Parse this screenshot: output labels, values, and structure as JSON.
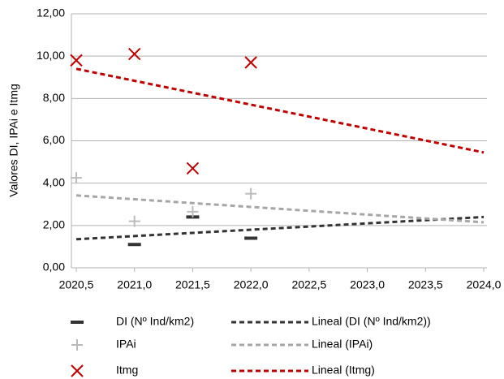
{
  "chart_data": {
    "type": "scatter",
    "y_label": "Valores DI, IPAi e Itmg",
    "xlim": [
      2020.5,
      2024.0
    ],
    "xticks": [
      {
        "value": 2020.5,
        "label": "2020,5"
      },
      {
        "value": 2021.0,
        "label": "2021,0"
      },
      {
        "value": 2021.5,
        "label": "2021,5"
      },
      {
        "value": 2022.0,
        "label": "2022,0"
      },
      {
        "value": 2022.5,
        "label": "2022,5"
      },
      {
        "value": 2023.0,
        "label": "2023,0"
      },
      {
        "value": 2023.5,
        "label": "2023,5"
      },
      {
        "value": 2024.0,
        "label": "2024,0"
      }
    ],
    "ylim": [
      0,
      12
    ],
    "yticks": [
      {
        "value": 0,
        "label": "0,00"
      },
      {
        "value": 2,
        "label": "2,00"
      },
      {
        "value": 4,
        "label": "4,00"
      },
      {
        "value": 6,
        "label": "6,00"
      },
      {
        "value": 8,
        "label": "8,00"
      },
      {
        "value": 10,
        "label": "10,00"
      },
      {
        "value": 12,
        "label": "12,00"
      }
    ],
    "grid": true,
    "legend": "bottom",
    "series": [
      {
        "name": "DI (Nº Ind/km2)",
        "color": "#333333",
        "marker": "dash",
        "x": [
          2021.0,
          2021.5,
          2022.0
        ],
        "values": [
          1.1,
          2.4,
          1.4
        ]
      },
      {
        "name": "Lineal (DI (Nº Ind/km2))",
        "color": "#333333",
        "line": "dashed",
        "x": [
          2020.5,
          2024.0
        ],
        "values": [
          1.35,
          2.4
        ]
      },
      {
        "name": "IPAi",
        "color": "#bbbbbb",
        "marker": "plus",
        "x": [
          2020.5,
          2021.0,
          2021.5,
          2022.0
        ],
        "values": [
          4.25,
          2.2,
          2.65,
          3.5
        ]
      },
      {
        "name": "Lineal (IPAi)",
        "color": "#a6a6a6",
        "line": "dashed",
        "x": [
          2020.5,
          2024.0
        ],
        "values": [
          3.42,
          2.15
        ]
      },
      {
        "name": "Itmg",
        "color": "#c00000",
        "marker": "x",
        "x": [
          2020.5,
          2021.0,
          2021.5,
          2022.0
        ],
        "values": [
          9.8,
          10.1,
          4.7,
          9.7
        ]
      },
      {
        "name": "Lineal (Itmg)",
        "color": "#c00000",
        "line": "dashed",
        "x": [
          2020.5,
          2024.0
        ],
        "values": [
          9.4,
          5.45
        ]
      }
    ]
  }
}
